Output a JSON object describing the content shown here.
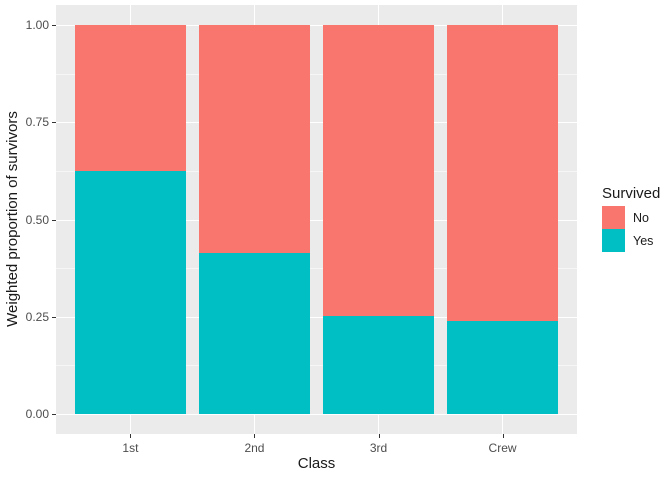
{
  "chart_data": {
    "type": "bar",
    "stacked": true,
    "normalized": true,
    "xlabel": "Class",
    "ylabel": "Weighted proportion of survivors",
    "categories": [
      "1st",
      "2nd",
      "3rd",
      "Crew"
    ],
    "series": [
      {
        "name": "No",
        "color": "#F8766D",
        "values": [
          0.375,
          0.586,
          0.748,
          0.76
        ]
      },
      {
        "name": "Yes",
        "color": "#00BFC4",
        "values": [
          0.625,
          0.414,
          0.252,
          0.24
        ]
      }
    ],
    "ylim": [
      0,
      1
    ],
    "y_tick_labels": [
      "0.00",
      "0.25",
      "0.50",
      "0.75",
      "1.00"
    ],
    "y_tick_values": [
      0,
      0.25,
      0.5,
      0.75,
      1.0
    ],
    "y_minor_values": [
      0.125,
      0.375,
      0.625,
      0.875
    ],
    "bar_width_fraction": 0.9,
    "grid": true,
    "legend": {
      "title": "Survived",
      "entries": [
        "No",
        "Yes"
      ],
      "position": "right"
    },
    "colors": {
      "panel_bg": "#EBEBEB",
      "grid": "#FFFFFF",
      "tick_mark": "#333333",
      "tick_label": "#4D4D4D",
      "axis_title": "#1A1A1A",
      "legend_text": "#1A1A1A",
      "figure_bg": "#FFFFFF"
    }
  }
}
